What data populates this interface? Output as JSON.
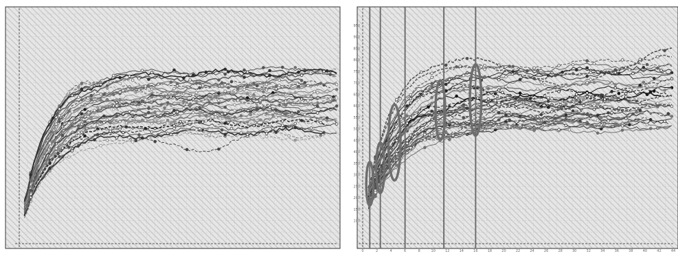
{
  "chart_data": [
    {
      "type": "line",
      "title": "",
      "xlabel": "",
      "ylabel": "",
      "grid": true,
      "legend": "none",
      "xlim": [
        0,
        50
      ],
      "ylim": [
        0,
        1000
      ],
      "n_series": 38,
      "series_style": "grayscale lines with circle markers, some dashed",
      "colors": {
        "background": "#e6e6e6",
        "hatch": "#c4c4c4",
        "grid": "#c8c8c8",
        "frame": "#333333",
        "lines_dark": "#1a1a1a",
        "lines_light": "#9a9a9a"
      },
      "curve_profile": {
        "x": [
          1,
          2,
          4,
          6,
          8,
          10,
          13,
          16,
          20,
          25,
          30,
          35,
          40,
          45,
          50
        ],
        "median_y": [
          150,
          270,
          390,
          470,
          520,
          550,
          575,
          590,
          600,
          605,
          610,
          610,
          610,
          610,
          610
        ],
        "spread_y": [
          40,
          70,
          110,
          130,
          145,
          150,
          155,
          160,
          160,
          160,
          160,
          160,
          160,
          160,
          160
        ]
      }
    },
    {
      "type": "line",
      "title": "",
      "xlabel": "",
      "ylabel": "",
      "grid": true,
      "legend": "none",
      "xlim": [
        0,
        44
      ],
      "ylim": [
        0,
        1000
      ],
      "x_ticks": [
        0,
        2,
        4,
        6,
        8,
        10,
        12,
        14,
        16,
        18,
        20,
        22,
        24,
        26,
        28,
        30,
        32,
        34,
        36,
        38,
        40,
        42,
        44
      ],
      "y_ticks": [
        100,
        150,
        200,
        250,
        300,
        350,
        400,
        450,
        500,
        550,
        600,
        650,
        700,
        750,
        800,
        850,
        900,
        950
      ],
      "n_series": 38,
      "series_style": "grayscale lines with circle markers, some dashed",
      "colors": {
        "background": "#e6e6e6",
        "hatch": "#c4c4c4",
        "grid": "#c8c8c8",
        "frame": "#333333",
        "lines_dark": "#1a1a1a",
        "lines_light": "#9a9a9a",
        "annotation": "#6e6e6e"
      },
      "curve_profile": {
        "x": [
          1,
          2,
          4,
          6,
          8,
          10,
          13,
          16,
          20,
          25,
          30,
          35,
          40,
          44
        ],
        "median_y": [
          200,
          310,
          430,
          510,
          560,
          590,
          615,
          630,
          640,
          645,
          650,
          650,
          650,
          650
        ],
        "spread_y": [
          50,
          90,
          130,
          150,
          160,
          165,
          170,
          170,
          170,
          170,
          170,
          170,
          170,
          170
        ]
      },
      "vertical_lines_x": [
        1,
        2.5,
        6,
        11.5,
        16
      ],
      "ellipses": [
        {
          "x": 1,
          "y_center": 260,
          "y_half": 95
        },
        {
          "x": 2.5,
          "y_center": 330,
          "y_half": 110
        },
        {
          "x": 4.5,
          "y_center": 440,
          "y_half": 165
        },
        {
          "x": 11,
          "y_center": 580,
          "y_half": 130
        },
        {
          "x": 16,
          "y_center": 625,
          "y_half": 155
        }
      ]
    }
  ]
}
